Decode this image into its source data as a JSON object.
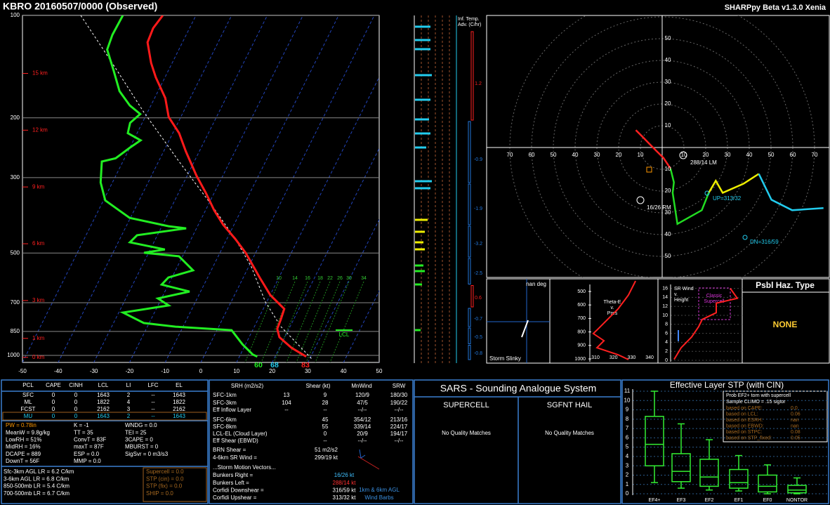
{
  "header": {
    "title": "KBRO  20160507/0000  (Observed)",
    "version": "SHARPpy Beta v1.3.0 Xenia"
  },
  "skewt": {
    "isobars": [
      100,
      200,
      300,
      500,
      700,
      850,
      1000
    ],
    "heights": [
      {
        "value": 0,
        "label": "0 km"
      },
      {
        "value": 1,
        "label": "1 km"
      },
      {
        "value": 3,
        "label": "3 km"
      },
      {
        "value": 6,
        "label": "6 km"
      },
      {
        "value": 9,
        "label": "9 km"
      },
      {
        "value": 12,
        "label": "12 km"
      },
      {
        "value": 15,
        "label": "15 km"
      }
    ],
    "temp_ticks": [
      -50,
      -40,
      -30,
      -20,
      -10,
      0,
      10,
      20,
      30,
      40,
      50
    ],
    "mixing_ratio_labels": [
      10,
      14,
      16,
      18,
      22,
      26,
      30,
      34
    ],
    "pressure": [
      100,
      109,
      120,
      138,
      152,
      175,
      199,
      222,
      251,
      296,
      333,
      375,
      413,
      454,
      499,
      590,
      664,
      730,
      785,
      835,
      884,
      949,
      1008
    ],
    "temperature": [
      -59.3,
      -60.2,
      -59.8,
      -55.9,
      -52.6,
      -47.0,
      -43.4,
      -38.2,
      -33.8,
      -27.4,
      -22.3,
      -17.5,
      -13.0,
      -7.7,
      -2.8,
      4.6,
      10.0,
      15.9,
      16.4,
      16.7,
      18.5,
      23.3,
      28.7
    ],
    "dewpoint_pressure": [
      100,
      114,
      126,
      145,
      167,
      184,
      195,
      207,
      222,
      233,
      245,
      263,
      269,
      310,
      350,
      375,
      394,
      417,
      423,
      443,
      465,
      488,
      499,
      511,
      562,
      590,
      619,
      649,
      680,
      713,
      748,
      803,
      823,
      843,
      927,
      995,
      1008
    ],
    "dewpoint": [
      -70.5,
      -70.7,
      -70.1,
      -65.4,
      -60.8,
      -55.9,
      -51.8,
      -53.4,
      -52.6,
      -48.0,
      -50.0,
      -52.5,
      -55.9,
      -53.3,
      -49.5,
      -44.1,
      -40.2,
      -28.1,
      -22.9,
      -35.7,
      -36.7,
      -25.9,
      -31.3,
      -21.0,
      -15.1,
      -21.0,
      -21.9,
      -13.1,
      -21.0,
      -17.0,
      -28.8,
      -21.5,
      -12.1,
      4.1,
      9.1,
      13.5,
      15.0
    ],
    "sfc_labels": {
      "wetbulb": 60,
      "dewpoint": 68,
      "temperature": 83
    },
    "lcl_label": "LCL"
  },
  "advection": {
    "title": [
      "Inf. Temp.",
      "Adv. (C/hr)"
    ],
    "values": [
      1.2,
      -0.9,
      -1.9,
      -3.2,
      -2.5,
      0.6,
      -0.7,
      -0.5,
      -0.8
    ]
  },
  "hodograph": {
    "rings": [
      10,
      20,
      30,
      40,
      50,
      60,
      70
    ],
    "segments": [
      {
        "color": "#ff2020",
        "u": [
          -12.1,
          -8.9,
          -5.8,
          -2.6,
          0.6,
          3.8
        ],
        "v": [
          8.0,
          4.8,
          1.6,
          -1.6,
          -4.8,
          -9.6
        ]
      },
      {
        "color": "#22dd22",
        "u": [
          3.8,
          5.4,
          4.8,
          7.0,
          18.2,
          21.4
        ],
        "v": [
          -9.6,
          -16.0,
          -20.8,
          -35.1,
          -28.8,
          -20.8
        ]
      },
      {
        "color": "#eeee00",
        "u": [
          21.4,
          24.6,
          27.8,
          37.4,
          44.4
        ],
        "v": [
          -20.8,
          -15.3,
          -20.8,
          -16.6,
          -12.1
        ]
      },
      {
        "color": "#22ccee",
        "u": [
          44.4,
          50.2,
          59.7,
          74.1
        ],
        "v": [
          -12.1,
          -24.0,
          -28.8,
          -27.8
        ]
      }
    ],
    "labels": {
      "lm": "288/14 LM",
      "rm": "16/26 RM",
      "up": "UP=313/32",
      "dn": "DN=316/59"
    }
  },
  "slinky": {
    "title": "Storm Slinky",
    "direction": "nan deg"
  },
  "theta_e": {
    "title": [
      "Theta-E",
      "v.",
      "Pres"
    ],
    "pressure_ticks": [
      500,
      600,
      700,
      800,
      900,
      1000
    ],
    "theta_ticks": [
      310,
      320,
      330,
      340
    ],
    "pressure": [
      422,
      526,
      630,
      682,
      734,
      786,
      812,
      865,
      917,
      969,
      1005
    ],
    "theta": [
      332.2,
      328.3,
      322.5,
      318.6,
      314.7,
      310.8,
      308.8,
      314.7,
      310.8,
      322.5,
      328.3
    ]
  },
  "sr_wind": {
    "title": [
      "SR Wind",
      "v.",
      "Height"
    ],
    "height_ticks": [
      0,
      2,
      4,
      6,
      8,
      10,
      12,
      14,
      16
    ],
    "height": [
      0.2,
      2.8,
      5.2,
      7.5,
      9.1,
      10.6,
      12.7,
      13.8,
      16.0
    ],
    "speed": [
      2.5,
      7.5,
      15,
      20,
      22.5,
      32.5,
      32.5,
      47.5,
      42.5
    ],
    "annotation": [
      "Classic",
      "Supercell"
    ]
  },
  "hazard": {
    "title": "Psbl Haz. Type",
    "value": "NONE"
  },
  "thermo": {
    "header": [
      "PCL",
      "CAPE",
      "CINH",
      "LCL",
      "LI",
      "LFC",
      "EL"
    ],
    "rows": [
      [
        "SFC",
        "0",
        "0",
        "1643",
        "2",
        "--",
        "1643"
      ],
      [
        "ML",
        "0",
        "0",
        "1822",
        "4",
        "--",
        "1822"
      ],
      [
        "FCST",
        "0",
        "0",
        "2162",
        "3",
        "--",
        "2162"
      ],
      [
        "MU",
        "0",
        "0",
        "1643",
        "2",
        "--",
        "1643"
      ]
    ],
    "indices": [
      [
        "PW = 0.78in",
        "MeanW = 9.8g/kg",
        "LowRH = 51%",
        "MidRH = 16%",
        "DCAPE = 889",
        "DownT = 56F"
      ],
      [
        "K = -1",
        "TT = 35",
        "ConvT = 83F",
        "maxT = 87F",
        "ESP = 0.0",
        "MMP = 0.0"
      ],
      [
        "WNDG = 0.0",
        "TEI = 25",
        "3CAPE = 0",
        "MBURST = 0",
        "SigSvr = 0 m3/s3"
      ]
    ],
    "lapse_rates": [
      "Sfc-3km AGL LR = 6.2 C/km",
      "3-6km AGL LR = 6.8 C/km",
      "850-500mb LR = 5.4 C/km",
      "700-500mb LR = 6.7 C/km"
    ],
    "composites": [
      "Supercell = 0.0",
      "STP (cin) = 0.0",
      "STP (fix) = 0.0",
      "SHIP = 0.0"
    ]
  },
  "kinematics": {
    "header": [
      "SRH (m2/s2)",
      "Shear (kt)",
      "MnWind",
      "SRW"
    ],
    "rows": [
      {
        "label": "SFC-1km",
        "srh": "13",
        "shear": "9",
        "mnwind": "120/9",
        "srw": "180/30"
      },
      {
        "label": "SFC-3km",
        "srh": "104",
        "shear": "28",
        "mnwind": "47/5",
        "srw": "190/22"
      },
      {
        "label": "Eff Inflow Layer",
        "srh": "--",
        "shear": "--",
        "mnwind": "--/--",
        "srw": "--/--"
      },
      {
        "label": "SFC-6km",
        "shear": "45",
        "mnwind": "354/12",
        "srw": "213/16"
      },
      {
        "label": "SFC-8km",
        "shear": "55",
        "mnwind": "339/14",
        "srw": "224/17"
      },
      {
        "label": "LCL-EL (Cloud Layer)",
        "shear": "0",
        "mnwind": "20/9",
        "srw": "194/17"
      },
      {
        "label": "Eff Shear (EBWD)",
        "shear": "--",
        "mnwind": "--/--",
        "srw": "--/--"
      }
    ],
    "extras": [
      {
        "label": "BRN Shear =",
        "value": "51 m2/s2"
      },
      {
        "label": "4-6km SR Wind =",
        "value": "299/19 kt"
      }
    ],
    "storm_title": "...Storm Motion Vectors...",
    "storm_motions": [
      {
        "label": "Bunkers Right =",
        "value": "16/26 kt"
      },
      {
        "label": "Bunkers Left =",
        "value": "288/14 kt"
      },
      {
        "label": "Corfidi Downshear =",
        "value": "316/59 kt"
      },
      {
        "label": "Corfidi Upshear =",
        "value": "313/32 kt"
      }
    ],
    "barb_note": [
      "1km & 6km AGL",
      "Wind Barbs"
    ]
  },
  "sars": {
    "title": "SARS - Sounding Analogue System",
    "supercell": "SUPERCELL",
    "hail": "SGFNT HAIL",
    "supercell_result": "No Quality Matches",
    "hail_result": "No Quality Matches"
  },
  "stp": {
    "title": "Effective Layer STP (with CIN)",
    "ylim": [
      0,
      11
    ],
    "yticks": [
      0,
      1,
      2,
      3,
      4,
      5,
      6,
      7,
      8,
      9,
      10,
      11
    ],
    "categories": [
      "EF4+",
      "EF3",
      "EF2",
      "EF1",
      "EF0",
      "NONTOR"
    ],
    "low": [
      1.2,
      0.6,
      0.4,
      0.3,
      0,
      0
    ],
    "q1": [
      3.0,
      1.3,
      0.8,
      0.6,
      0.2,
      0.1
    ],
    "median": [
      5.3,
      2.4,
      1.8,
      1.2,
      0.8,
      0.4
    ],
    "q3": [
      8.3,
      4.3,
      3.7,
      2.6,
      2.0,
      0.9
    ],
    "high": [
      11.0,
      7.5,
      5.8,
      4.1,
      3.1,
      1.7
    ],
    "legend": {
      "title": "Prob EF2+ torn with supercell",
      "subtitle": "Sample CLIMO = .15 sigtor",
      "rows": [
        {
          "label": "based on CAPE:",
          "value": "0.0"
        },
        {
          "label": "based on LCL:",
          "value": "0.06"
        },
        {
          "label": "based on ESRH:",
          "value": "nan"
        },
        {
          "label": "based on EBWD:",
          "value": "nan"
        },
        {
          "label": "based on STPC:",
          "value": "0.08"
        },
        {
          "label": "based on STP_fixed:",
          "value": "0.05"
        }
      ]
    }
  }
}
